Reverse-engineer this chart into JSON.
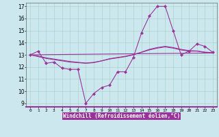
{
  "xlabel": "Windchill (Refroidissement éolien,°C)",
  "background_color": "#cce8ee",
  "plot_bg_color": "#cce8ee",
  "line_color": "#993399",
  "grid_color": "#aad4cc",
  "axis_color": "#993399",
  "xlim": [
    -0.5,
    23.5
  ],
  "ylim": [
    8.7,
    17.3
  ],
  "xticks": [
    0,
    1,
    2,
    3,
    4,
    5,
    6,
    7,
    8,
    9,
    10,
    11,
    12,
    13,
    14,
    15,
    16,
    17,
    18,
    19,
    20,
    21,
    22,
    23
  ],
  "yticks": [
    9,
    10,
    11,
    12,
    13,
    14,
    15,
    16,
    17
  ],
  "line1_x": [
    0,
    1,
    2,
    3,
    4,
    5,
    6,
    7,
    8,
    9,
    10,
    11,
    12,
    13,
    14,
    15,
    16,
    17,
    18,
    19,
    20,
    21,
    22,
    23
  ],
  "line1_y": [
    13.0,
    13.3,
    12.3,
    12.4,
    11.9,
    11.8,
    11.8,
    9.0,
    9.8,
    10.3,
    10.5,
    11.6,
    11.6,
    12.8,
    14.8,
    16.2,
    17.0,
    17.0,
    15.0,
    13.0,
    13.3,
    13.9,
    13.7,
    13.2
  ],
  "line2_x": [
    0,
    1,
    2,
    3,
    4,
    5,
    6,
    7,
    8,
    9,
    10,
    11,
    12,
    13,
    14,
    15,
    16,
    17,
    18,
    19,
    20,
    21,
    22,
    23
  ],
  "line2_y": [
    13.0,
    12.85,
    12.7,
    12.6,
    12.5,
    12.4,
    12.35,
    12.3,
    12.35,
    12.5,
    12.65,
    12.75,
    12.85,
    13.0,
    13.2,
    13.4,
    13.55,
    13.65,
    13.55,
    13.4,
    13.3,
    13.3,
    13.2,
    13.15
  ],
  "line3_x": [
    0,
    1,
    2,
    3,
    4,
    5,
    6,
    7,
    8,
    9,
    10,
    11,
    12,
    13,
    14,
    15,
    16,
    17,
    18,
    19,
    20,
    21,
    22,
    23
  ],
  "line3_y": [
    13.0,
    12.9,
    12.75,
    12.65,
    12.55,
    12.45,
    12.38,
    12.32,
    12.38,
    12.5,
    12.68,
    12.78,
    12.88,
    13.02,
    13.22,
    13.45,
    13.6,
    13.7,
    13.6,
    13.45,
    13.35,
    13.32,
    13.22,
    13.18
  ],
  "line4_x": [
    0,
    23
  ],
  "line4_y": [
    13.0,
    13.15
  ]
}
